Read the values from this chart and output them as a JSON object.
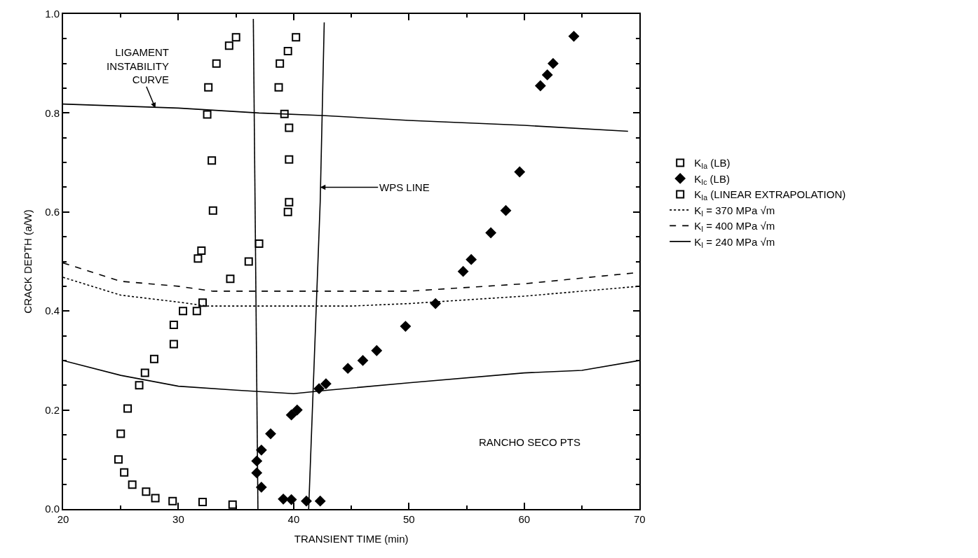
{
  "chart_data": {
    "type": "scatter",
    "xlabel": "TRANSIENT TIME (min)",
    "ylabel": "CRACK DEPTH (a/W)",
    "xlim": [
      20,
      70
    ],
    "ylim": [
      0,
      1.0
    ],
    "xticks": [
      20,
      {
        "value": 25,
        "label": null
      },
      30,
      {
        "value": 35,
        "label": null
      },
      40,
      {
        "value": 45,
        "label": null
      },
      50,
      {
        "value": 55,
        "label": null
      },
      60,
      {
        "value": 65,
        "label": null
      },
      70
    ],
    "yticks": [
      {
        "value": 0,
        "label": "0.0"
      },
      {
        "value": 0.05,
        "label": null
      },
      {
        "value": 0.1,
        "label": null
      },
      {
        "value": 0.15,
        "label": null
      },
      {
        "value": 0.2,
        "label": "0.2"
      },
      {
        "value": 0.25,
        "label": null
      },
      {
        "value": 0.3,
        "label": null
      },
      {
        "value": 0.35,
        "label": null
      },
      {
        "value": 0.4,
        "label": "0.4"
      },
      {
        "value": 0.45,
        "label": null
      },
      {
        "value": 0.5,
        "label": null
      },
      {
        "value": 0.55,
        "label": null
      },
      {
        "value": 0.6,
        "label": "0.6"
      },
      {
        "value": 0.65,
        "label": null
      },
      {
        "value": 0.7,
        "label": null
      },
      {
        "value": 0.75,
        "label": null
      },
      {
        "value": 0.8,
        "label": "0.8"
      },
      {
        "value": 0.85,
        "label": null
      },
      {
        "value": 0.9,
        "label": null
      },
      {
        "value": 0.95,
        "label": null
      },
      {
        "value": 1.0,
        "label": "1.0"
      }
    ],
    "legend": "right",
    "series": [
      {
        "name": "K$_{Ia}$ (LB)",
        "marker": "square",
        "color": "#000000",
        "x": [
          35.0,
          34.4,
          33.3,
          32.6,
          32.5,
          32.9,
          33.0,
          32.0,
          31.7,
          32.1,
          31.6,
          30.4,
          29.6,
          29.6,
          27.9,
          27.1,
          26.6,
          25.6,
          25.0,
          24.8,
          25.3,
          26.0,
          27.2,
          28.0,
          29.5,
          32.1,
          34.7
        ],
        "values": [
          0.953,
          0.936,
          0.9,
          0.852,
          0.797,
          0.704,
          0.603,
          0.522,
          0.506,
          0.417,
          0.4,
          0.4,
          0.372,
          0.333,
          0.303,
          0.275,
          0.25,
          0.203,
          0.152,
          0.1,
          0.074,
          0.049,
          0.035,
          0.022,
          0.016,
          0.014,
          0.009
        ]
      },
      {
        "name": "K$_{Ic}$ (LB)",
        "marker": "diamond",
        "color": "#000000",
        "x": [
          64.3,
          62.5,
          62.0,
          61.4,
          59.6,
          58.4,
          57.1,
          55.4,
          54.7,
          52.3,
          49.7,
          47.2,
          46.0,
          44.7,
          42.8,
          42.2,
          40.3,
          39.8,
          38.0,
          37.2,
          36.8,
          36.8,
          37.2,
          39.1,
          39.8,
          41.1,
          42.3
        ],
        "values": [
          0.955,
          0.9,
          0.877,
          0.855,
          0.681,
          0.603,
          0.558,
          0.504,
          0.48,
          0.415,
          0.369,
          0.32,
          0.3,
          0.284,
          0.253,
          0.243,
          0.2,
          0.19,
          0.152,
          0.119,
          0.097,
          0.073,
          0.044,
          0.02,
          0.019,
          0.016,
          0.016
        ]
      },
      {
        "name": "K$_{Ia}$ (LINEAR EXTRAPOLATION)",
        "marker": "square",
        "color": "#000000",
        "x": [
          40.2,
          39.5,
          38.8,
          38.7,
          39.2,
          39.6,
          39.6,
          39.6,
          39.5,
          37.0,
          36.1,
          34.5
        ],
        "values": [
          0.953,
          0.925,
          0.9,
          0.852,
          0.798,
          0.77,
          0.706,
          0.62,
          0.6,
          0.536,
          0.5,
          0.465
        ]
      },
      {
        "name": "K$_{I}$ = 370 MPa √m",
        "type": "line",
        "line_style": "dotted",
        "color": "#000000",
        "x": [
          20,
          25,
          30,
          32.5,
          40,
          45,
          50,
          60,
          70
        ],
        "values": [
          0.468,
          0.432,
          0.418,
          0.41,
          0.41,
          0.41,
          0.415,
          0.43,
          0.45
        ]
      },
      {
        "name": "K$_{I}$ = 400 MPa √m",
        "type": "line",
        "line_style": "dashed",
        "color": "#000000",
        "x": [
          20,
          25,
          30,
          33,
          40,
          50,
          60,
          70
        ],
        "values": [
          0.497,
          0.46,
          0.45,
          0.44,
          0.44,
          0.44,
          0.455,
          0.478
        ]
      },
      {
        "name": "K$_{I}$ = 240 MPa √m",
        "type": "line",
        "line_style": "solid",
        "color": "#000000",
        "x": [
          20,
          25,
          30,
          35,
          40,
          43,
          50,
          60,
          65,
          70
        ],
        "values": [
          0.3,
          0.27,
          0.248,
          0.24,
          0.233,
          0.24,
          0.255,
          0.275,
          0.28,
          0.3
        ]
      },
      {
        "type": "line",
        "line_style": "solid",
        "color": "#000000",
        "x": [
          20,
          30,
          37,
          42.5,
          50,
          60,
          69
        ],
        "values": [
          0.818,
          0.81,
          0.8,
          0.795,
          0.785,
          0.775,
          0.763
        ]
      },
      {
        "type": "line",
        "line_style": "solid",
        "color": "#000000",
        "x": [
          36.5,
          36.9
        ],
        "values": [
          0.99,
          0.0
        ]
      },
      {
        "type": "line",
        "line_style": "solid",
        "color": "#000000",
        "x": [
          42.65,
          42.3,
          41.3
        ],
        "values": [
          0.983,
          0.62,
          0.0
        ]
      }
    ],
    "annotations": [
      {
        "text": "LIGAMENT\nINSTABILITY\nCURVE",
        "x": 28,
        "y": 0.81
      },
      {
        "text": "WPS LINE",
        "x": 42.3,
        "y": 0.65
      },
      "RANCHO SECO PTS"
    ]
  }
}
